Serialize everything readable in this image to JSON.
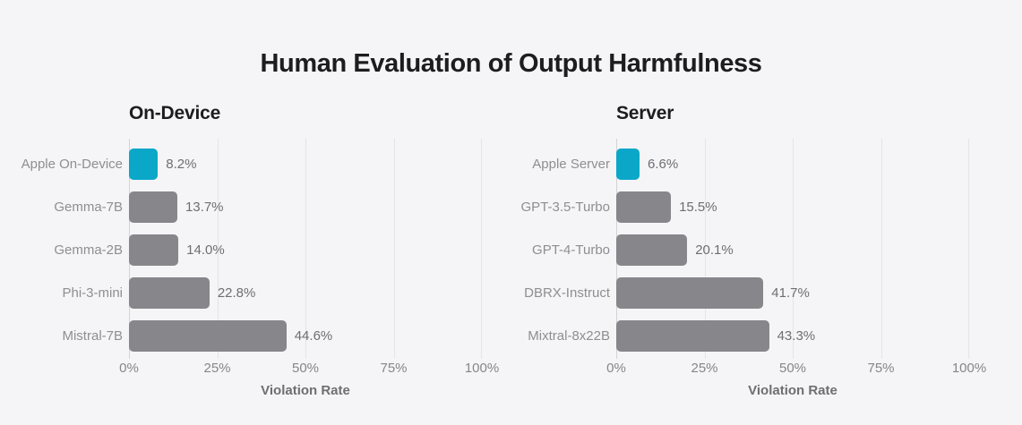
{
  "title": "Human Evaluation of Output Harmfulness",
  "colors": {
    "background": "#f5f5f7",
    "highlight": "#0ba7c9",
    "bar_gray": "#86868b",
    "title_text": "#1d1d1f",
    "label_text": "#8e8e93",
    "value_text": "#6e6e73",
    "gridline": "#e4e4e9",
    "axis_line": "#d2d2d7"
  },
  "chart_data": [
    {
      "type": "bar",
      "orientation": "horizontal",
      "title": "On-Device",
      "xlabel": "Violation Rate",
      "xlim": [
        0,
        100
      ],
      "xticks": [
        "0%",
        "25%",
        "50%",
        "75%",
        "100%"
      ],
      "grid": true,
      "categories": [
        "Apple On-Device",
        "Gemma-7B",
        "Gemma-2B",
        "Phi-3-mini",
        "Mistral-7B"
      ],
      "values": [
        8.2,
        13.7,
        14.0,
        22.8,
        44.6
      ],
      "value_labels": [
        "8.2%",
        "13.7%",
        "14.0%",
        "22.8%",
        "44.6%"
      ],
      "highlight_index": 0,
      "bar_color": "#86868b",
      "highlight_color": "#0ba7c9"
    },
    {
      "type": "bar",
      "orientation": "horizontal",
      "title": "Server",
      "xlabel": "Violation Rate",
      "xlim": [
        0,
        100
      ],
      "xticks": [
        "0%",
        "25%",
        "50%",
        "75%",
        "100%"
      ],
      "grid": true,
      "categories": [
        "Apple Server",
        "GPT-3.5-Turbo",
        "GPT-4-Turbo",
        "DBRX-Instruct",
        "Mixtral-8x22B"
      ],
      "values": [
        6.6,
        15.5,
        20.1,
        41.7,
        43.3
      ],
      "value_labels": [
        "6.6%",
        "15.5%",
        "20.1%",
        "41.7%",
        "43.3%"
      ],
      "highlight_index": 0,
      "bar_color": "#86868b",
      "highlight_color": "#0ba7c9"
    }
  ]
}
